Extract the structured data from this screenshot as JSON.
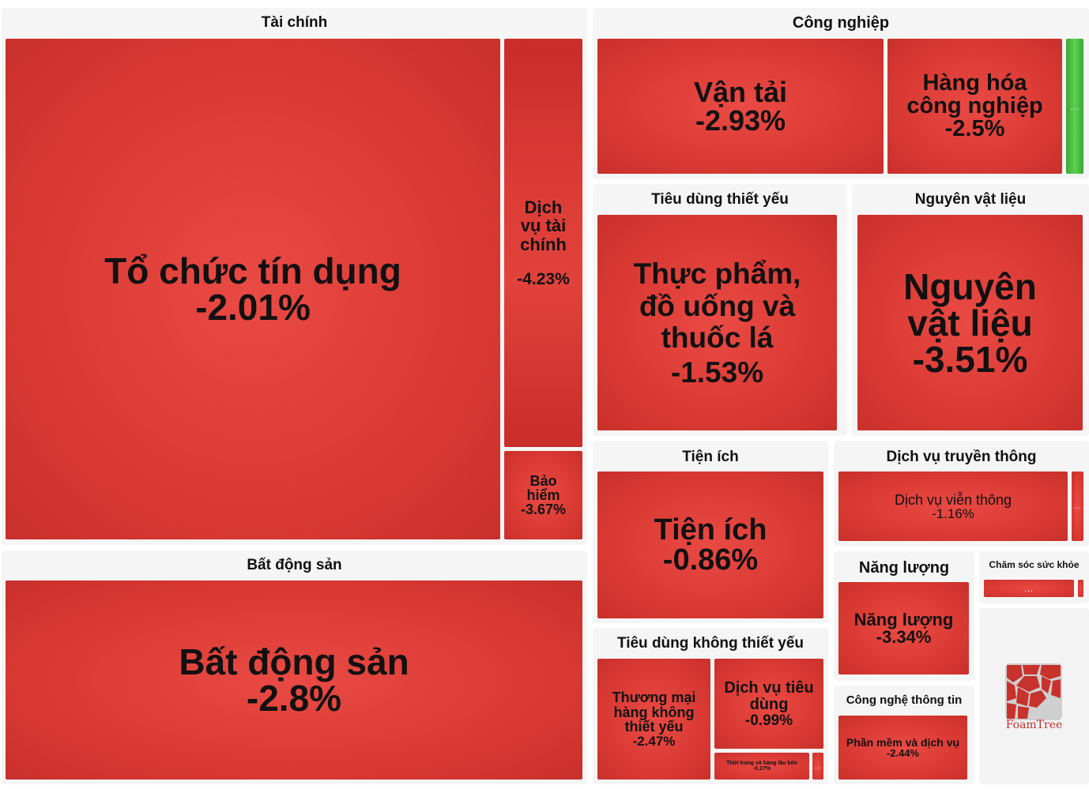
{
  "chart_data": {
    "type": "treemap",
    "groups": [
      {
        "name": "Tài chính",
        "cells": [
          {
            "label": "Tổ chức tín dụng",
            "value": "-2.01%"
          },
          {
            "label": "Dịch vụ tài chính",
            "value": "-4.23%"
          },
          {
            "label": "Bảo hiểm",
            "value": "-3.67%"
          }
        ]
      },
      {
        "name": "Bất động sản",
        "cells": [
          {
            "label": "Bất động sản",
            "value": "-2.8%"
          }
        ]
      },
      {
        "name": "Công nghiệp",
        "cells": [
          {
            "label": "Vận tải",
            "value": "-2.93%"
          },
          {
            "label": "Hàng hóa công nghiệp",
            "value": "-2.5%"
          },
          {
            "label": "…",
            "value": ""
          }
        ]
      },
      {
        "name": "Tiêu dùng thiết yếu",
        "cells": [
          {
            "label": "Thực phẩm, đồ uống và thuốc lá",
            "value": "-1.53%"
          }
        ]
      },
      {
        "name": "Nguyên vật liệu",
        "cells": [
          {
            "label": "Nguyên vật liệu",
            "value": "-3.51%"
          }
        ]
      },
      {
        "name": "Tiện ích",
        "cells": [
          {
            "label": "Tiện ích",
            "value": "-0.86%"
          }
        ]
      },
      {
        "name": "Dịch vụ truyền thông",
        "cells": [
          {
            "label": "Dịch vụ viễn thông",
            "value": "-1.16%"
          },
          {
            "label": "…",
            "value": ""
          }
        ]
      },
      {
        "name": "Năng lượng",
        "cells": [
          {
            "label": "Năng lượng",
            "value": "-3.34%"
          }
        ]
      },
      {
        "name": "Chăm sóc sức khỏe",
        "cells": [
          {
            "label": "…",
            "value": ""
          },
          {
            "label": "",
            "value": ""
          }
        ]
      },
      {
        "name": "Tiêu dùng không thiết yếu",
        "cells": [
          {
            "label": "Thương mại hàng không thiết yếu",
            "value": "-2.47%"
          },
          {
            "label": "Dịch vụ tiêu dùng",
            "value": "-0.99%"
          },
          {
            "label": "Thời trang và hàng lâu bền",
            "value": "-0.27%"
          },
          {
            "label": "…",
            "value": ""
          }
        ]
      },
      {
        "name": "Công nghệ thông tin",
        "cells": [
          {
            "label": "Phần mềm và dịch vụ",
            "value": "-2.44%"
          }
        ]
      }
    ],
    "colors": {
      "negative": "#dc3b35",
      "positive": "#4cbd44"
    }
  },
  "logo": {
    "text": "FoamTree"
  }
}
